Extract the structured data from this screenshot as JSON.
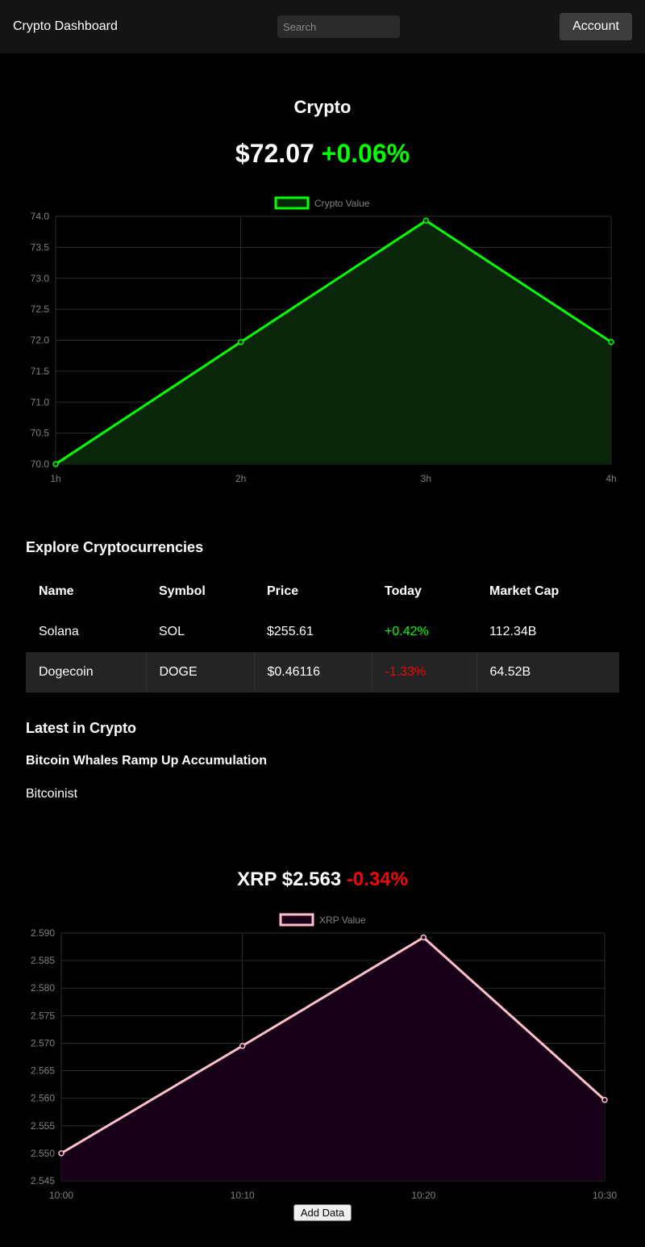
{
  "header": {
    "title": "Crypto Dashboard",
    "search_placeholder": "Search",
    "account_label": "Account"
  },
  "hero": {
    "title": "Crypto",
    "price": "$72.07",
    "change": "+0.06%",
    "change_color": "#00ff00"
  },
  "explore": {
    "heading": "Explore Cryptocurrencies",
    "columns": [
      "Name",
      "Symbol",
      "Price",
      "Today",
      "Market Cap"
    ],
    "rows": [
      {
        "name": "Solana",
        "symbol": "SOL",
        "price": "$255.61",
        "today": "+0.42%",
        "market_cap": "112.34B"
      },
      {
        "name": "Dogecoin",
        "symbol": "DOGE",
        "price": "$0.46116",
        "today": "-1.33%",
        "market_cap": "64.52B"
      }
    ],
    "positive_color": "#00ff00",
    "negative_color": "#ff0000"
  },
  "news": {
    "heading": "Latest in Crypto",
    "title": "Bitcoin Whales Ramp Up Accumulation",
    "source": "Bitcoinist"
  },
  "xrp": {
    "name": "XRP",
    "price": "$2.563",
    "change": "-0.34%",
    "change_color": "#ff0000"
  },
  "add_data_label": "Add Data",
  "chart_data": [
    {
      "type": "line",
      "x": [
        "1h",
        "2h",
        "3h",
        "4h"
      ],
      "series": [
        {
          "name": "Crypto Value",
          "values": [
            70.0,
            71.97,
            73.93,
            71.97
          ],
          "color": "#00ff00",
          "fill": "#0a260a"
        }
      ],
      "ylim": [
        70.0,
        74.0
      ],
      "yticks": [
        "74.0",
        "73.5",
        "73.0",
        "72.5",
        "72.0",
        "71.5",
        "71.0",
        "70.5",
        "70.0"
      ],
      "grid": true,
      "legend": "top-center"
    },
    {
      "type": "line",
      "x": [
        "10:00",
        "10:10",
        "10:20",
        "10:30"
      ],
      "series": [
        {
          "name": "XRP Value",
          "values": [
            2.55,
            2.5695,
            2.5892,
            2.5597
          ],
          "color": "#ffc0cb",
          "fill": "#180018"
        }
      ],
      "ylim": [
        2.545,
        2.59
      ],
      "yticks": [
        "2.590",
        "2.585",
        "2.580",
        "2.575",
        "2.570",
        "2.565",
        "2.560",
        "2.555",
        "2.550",
        "2.545"
      ],
      "grid": true,
      "legend": "top-center"
    }
  ]
}
